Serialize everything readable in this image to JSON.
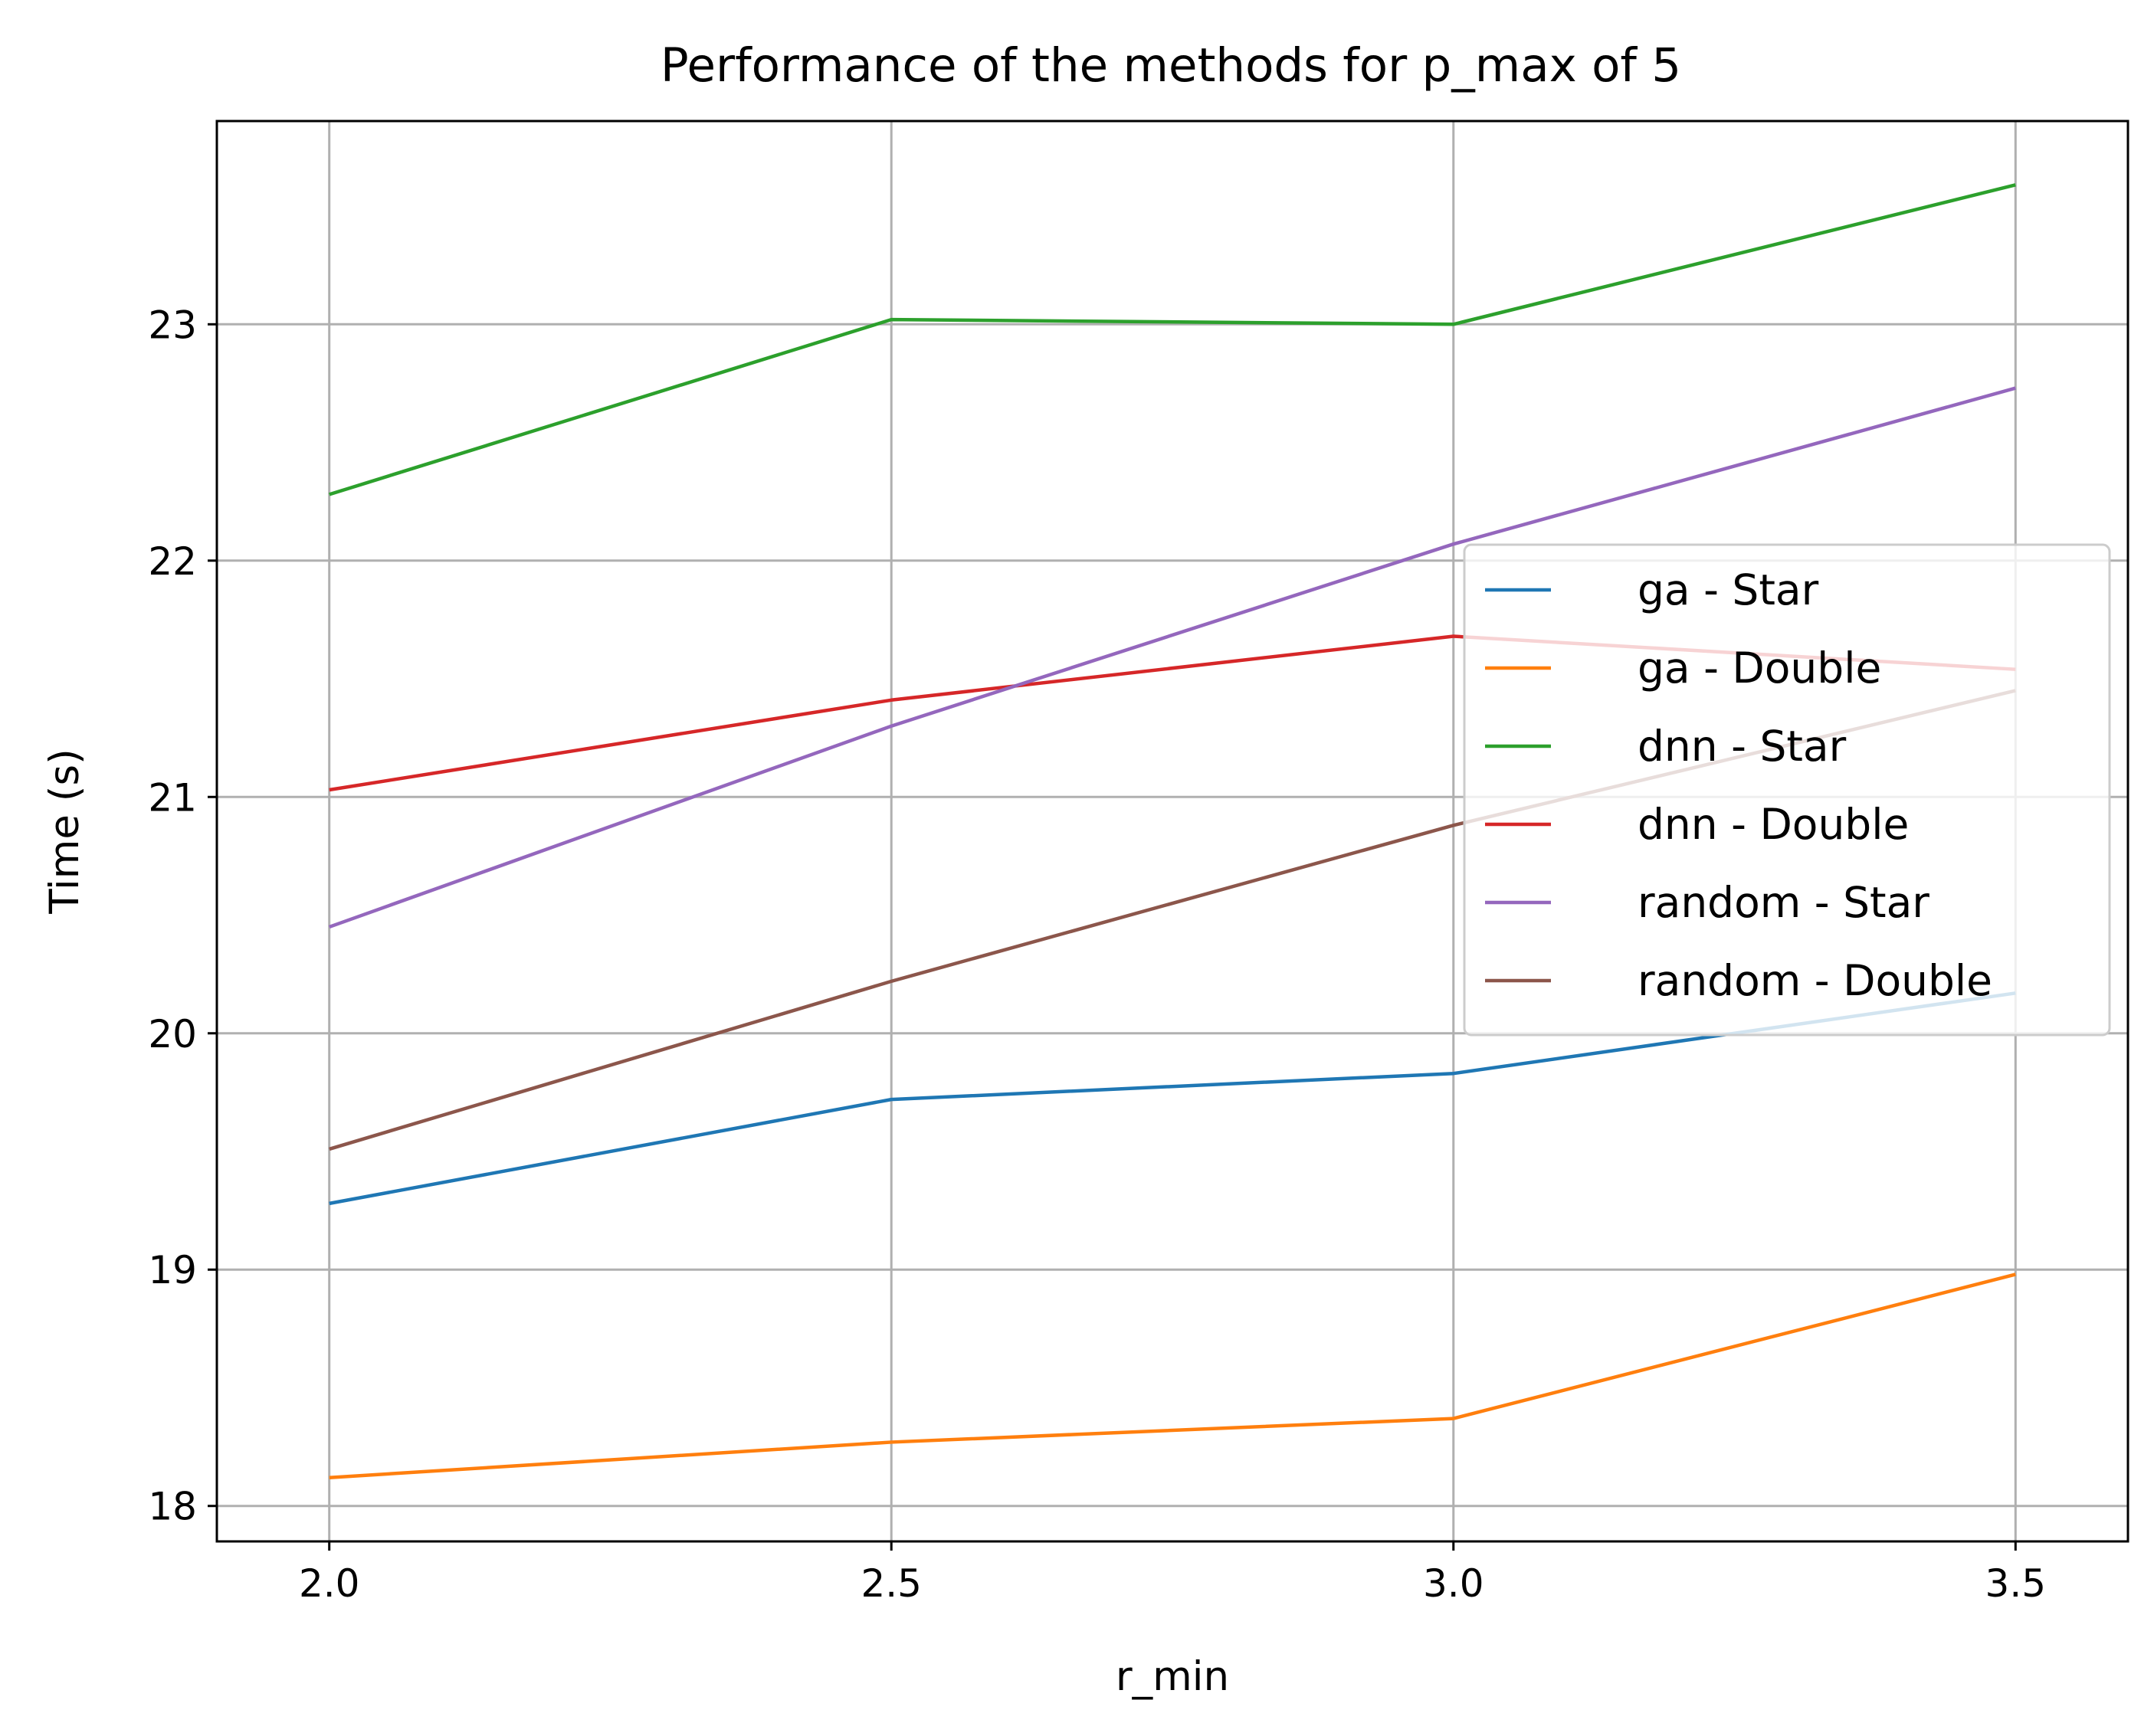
{
  "chart_data": {
    "type": "line",
    "title": "Performance of the methods for p_max of 5",
    "xlabel": "r_min",
    "ylabel": "Time (s)",
    "x": [
      2.0,
      2.5,
      3.0,
      3.5
    ],
    "x_tick_labels": [
      "2.0",
      "2.5",
      "3.0",
      "3.5"
    ],
    "y_ticks": [
      18,
      19,
      20,
      21,
      22,
      23
    ],
    "y_tick_labels": [
      "18",
      "19",
      "20",
      "21",
      "22",
      "23"
    ],
    "xlim": [
      1.9,
      3.6
    ],
    "ylim": [
      17.85,
      23.86
    ],
    "grid": true,
    "legend_position": "center-right",
    "series": [
      {
        "name": "ga - Star",
        "color": "#1f77b4",
        "values": [
          19.28,
          19.72,
          19.83,
          20.17
        ]
      },
      {
        "name": "ga - Double",
        "color": "#ff7f0e",
        "values": [
          18.12,
          18.27,
          18.37,
          18.98
        ]
      },
      {
        "name": "dnn - Star",
        "color": "#2ca02c",
        "values": [
          22.28,
          23.02,
          23.0,
          23.59
        ]
      },
      {
        "name": "dnn - Double",
        "color": "#d62728",
        "values": [
          21.03,
          21.41,
          21.68,
          21.54
        ]
      },
      {
        "name": "random - Star",
        "color": "#9467bd",
        "values": [
          20.45,
          21.3,
          22.07,
          22.73
        ]
      },
      {
        "name": "random - Double",
        "color": "#8c564b",
        "values": [
          19.51,
          20.22,
          20.88,
          21.45
        ]
      }
    ]
  }
}
